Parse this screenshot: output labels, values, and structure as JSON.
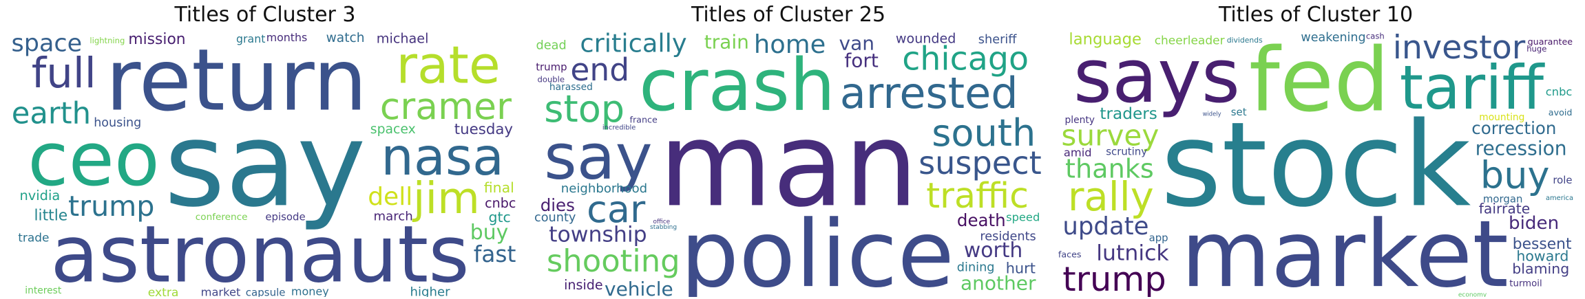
{
  "chart_data": [
    {
      "type": "wordcloud",
      "title": "Titles of Cluster 3",
      "words": [
        {
          "text": "say",
          "weight": 1.0,
          "color": "#2a788e"
        },
        {
          "text": "return",
          "weight": 0.72,
          "color": "#3b528b"
        },
        {
          "text": "astronauts",
          "weight": 0.66,
          "color": "#3e4a89"
        },
        {
          "text": "ceo",
          "weight": 0.62,
          "color": "#22a884"
        },
        {
          "text": "nasa",
          "weight": 0.55,
          "color": "#31688e"
        },
        {
          "text": "cramer",
          "weight": 0.5,
          "color": "#7ad151"
        },
        {
          "text": "jim",
          "weight": 0.46,
          "color": "#bddf26"
        },
        {
          "text": "rate",
          "weight": 0.42,
          "color": "#b5de2b"
        },
        {
          "text": "earth",
          "weight": 0.4,
          "color": "#21918c"
        },
        {
          "text": "trump",
          "weight": 0.38,
          "color": "#2c728e"
        },
        {
          "text": "watch",
          "weight": 0.36,
          "color": "#2f6c8e"
        },
        {
          "text": "full",
          "weight": 0.34,
          "color": "#414487"
        },
        {
          "text": "dell",
          "weight": 0.33,
          "color": "#d0e11c"
        },
        {
          "text": "space",
          "weight": 0.32,
          "color": "#35608d"
        },
        {
          "text": "fast",
          "weight": 0.3,
          "color": "#33638d"
        },
        {
          "text": "nvidia",
          "weight": 0.29,
          "color": "#1fa188"
        },
        {
          "text": "spacex",
          "weight": 0.28,
          "color": "#4ac16d"
        },
        {
          "text": "buy",
          "weight": 0.27,
          "color": "#5ec962"
        },
        {
          "text": "conference",
          "weight": 0.2,
          "color": "#7ad151"
        },
        {
          "text": "housing",
          "weight": 0.2,
          "color": "#3b528b"
        },
        {
          "text": "months",
          "weight": 0.18,
          "color": "#472c7a"
        },
        {
          "text": "tuesday",
          "weight": 0.19,
          "color": "#443983"
        },
        {
          "text": "grant",
          "weight": 0.18,
          "color": "#2a788e"
        },
        {
          "text": "michael",
          "weight": 0.17,
          "color": "#46337e"
        },
        {
          "text": "capsule",
          "weight": 0.17,
          "color": "#33638d"
        },
        {
          "text": "mission",
          "weight": 0.15,
          "color": "#481f70"
        },
        {
          "text": "march",
          "weight": 0.16,
          "color": "#482576"
        },
        {
          "text": "higher",
          "weight": 0.16,
          "color": "#287c8e"
        },
        {
          "text": "little",
          "weight": 0.15,
          "color": "#25858e"
        },
        {
          "text": "trade",
          "weight": 0.15,
          "color": "#2c728e"
        },
        {
          "text": "money",
          "weight": 0.14,
          "color": "#2d708e"
        },
        {
          "text": "final",
          "weight": 0.14,
          "color": "#b5de2b"
        },
        {
          "text": "lightning",
          "weight": 0.13,
          "color": "#84d44b"
        },
        {
          "text": "interest",
          "weight": 0.12,
          "color": "#6ccd5a"
        },
        {
          "text": "episode",
          "weight": 0.13,
          "color": "#443983"
        },
        {
          "text": "gtc",
          "weight": 0.14,
          "color": "#1f988b"
        },
        {
          "text": "cnbc",
          "weight": 0.13,
          "color": "#481769"
        },
        {
          "text": "market",
          "weight": 0.11,
          "color": "#404688"
        },
        {
          "text": "extra",
          "weight": 0.09,
          "color": "#a0da39"
        }
      ]
    },
    {
      "type": "wordcloud",
      "title": "Titles of Cluster 25",
      "words": [
        {
          "text": "man",
          "weight": 1.0,
          "color": "#472d7b"
        },
        {
          "text": "police",
          "weight": 0.78,
          "color": "#3e4c8a"
        },
        {
          "text": "crash",
          "weight": 0.6,
          "color": "#2eb37c"
        },
        {
          "text": "say",
          "weight": 0.52,
          "color": "#3b528b"
        },
        {
          "text": "arrested",
          "weight": 0.45,
          "color": "#31688e"
        },
        {
          "text": "chicago",
          "weight": 0.34,
          "color": "#20a386"
        },
        {
          "text": "suspect",
          "weight": 0.33,
          "color": "#39568c"
        },
        {
          "text": "shooting",
          "weight": 0.32,
          "color": "#65cb5e"
        },
        {
          "text": "south",
          "weight": 0.3,
          "color": "#2c728e"
        },
        {
          "text": "car",
          "weight": 0.3,
          "color": "#306a8e"
        },
        {
          "text": "stop",
          "weight": 0.3,
          "color": "#3dbc74"
        },
        {
          "text": "traffic",
          "weight": 0.28,
          "color": "#bddf26"
        },
        {
          "text": "home",
          "weight": 0.26,
          "color": "#2d708e"
        },
        {
          "text": "end",
          "weight": 0.25,
          "color": "#414487"
        },
        {
          "text": "critically",
          "weight": 0.2,
          "color": "#287d8e"
        },
        {
          "text": "township",
          "weight": 0.17,
          "color": "#433e85"
        },
        {
          "text": "worth",
          "weight": 0.16,
          "color": "#443983"
        },
        {
          "text": "neighborhood",
          "weight": 0.16,
          "color": "#2a778e"
        },
        {
          "text": "vehicle",
          "weight": 0.15,
          "color": "#306a8e"
        },
        {
          "text": "fort",
          "weight": 0.15,
          "color": "#46307e"
        },
        {
          "text": "another",
          "weight": 0.15,
          "color": "#5ec962"
        },
        {
          "text": "train",
          "weight": 0.15,
          "color": "#7ad151"
        },
        {
          "text": "van",
          "weight": 0.15,
          "color": "#3e4a89"
        },
        {
          "text": "wounded",
          "weight": 0.13,
          "color": "#443983"
        },
        {
          "text": "death",
          "weight": 0.13,
          "color": "#471063"
        },
        {
          "text": "dies",
          "weight": 0.13,
          "color": "#481f70"
        },
        {
          "text": "harassed",
          "weight": 0.12,
          "color": "#2e6e8e"
        },
        {
          "text": "dining",
          "weight": 0.12,
          "color": "#2a788e"
        },
        {
          "text": "county",
          "weight": 0.12,
          "color": "#31678e"
        },
        {
          "text": "sheriff",
          "weight": 0.12,
          "color": "#3b528b"
        },
        {
          "text": "dead",
          "weight": 0.12,
          "color": "#73d056"
        },
        {
          "text": "speed",
          "weight": 0.11,
          "color": "#22a884"
        },
        {
          "text": "france",
          "weight": 0.11,
          "color": "#433d84"
        },
        {
          "text": "residents",
          "weight": 0.12,
          "color": "#3f4788"
        },
        {
          "text": "incredible",
          "weight": 0.11,
          "color": "#404588"
        },
        {
          "text": "inside",
          "weight": 0.1,
          "color": "#482173"
        },
        {
          "text": "stabbing",
          "weight": 0.1,
          "color": "#2e6f8e"
        },
        {
          "text": "hurt",
          "weight": 0.11,
          "color": "#3b528b"
        },
        {
          "text": "double",
          "weight": 0.1,
          "color": "#453781"
        },
        {
          "text": "office",
          "weight": 0.1,
          "color": "#46327e"
        },
        {
          "text": "trump",
          "weight": 0.1,
          "color": "#481b6d"
        }
      ]
    },
    {
      "type": "wordcloud",
      "title": "Titles of Cluster 10",
      "words": [
        {
          "text": "stock",
          "weight": 1.0,
          "color": "#277f8e"
        },
        {
          "text": "market",
          "weight": 0.78,
          "color": "#3e4a89"
        },
        {
          "text": "fed",
          "weight": 0.74,
          "color": "#7ad151"
        },
        {
          "text": "says",
          "weight": 0.62,
          "color": "#481f70"
        },
        {
          "text": "tariff",
          "weight": 0.5,
          "color": "#1f988b"
        },
        {
          "text": "trump",
          "weight": 0.46,
          "color": "#440154"
        },
        {
          "text": "investor",
          "weight": 0.34,
          "color": "#39568c"
        },
        {
          "text": "recession",
          "weight": 0.33,
          "color": "#2e6e8e"
        },
        {
          "text": "rally",
          "weight": 0.32,
          "color": "#bddf26"
        },
        {
          "text": "survey",
          "weight": 0.3,
          "color": "#9bd93c"
        },
        {
          "text": "buy",
          "weight": 0.3,
          "color": "#2c728e"
        },
        {
          "text": "thanks",
          "weight": 0.27,
          "color": "#5ec962"
        },
        {
          "text": "update",
          "weight": 0.25,
          "color": "#3e4a89"
        },
        {
          "text": "correction",
          "weight": 0.22,
          "color": "#306a8e"
        },
        {
          "text": "weakening",
          "weight": 0.2,
          "color": "#2e6e8e"
        },
        {
          "text": "fairrate",
          "weight": 0.18,
          "color": "#443a83"
        },
        {
          "text": "lutnick",
          "weight": 0.17,
          "color": "#453781"
        },
        {
          "text": "traders",
          "weight": 0.16,
          "color": "#1f968b"
        },
        {
          "text": "cheerleader",
          "weight": 0.15,
          "color": "#86d549"
        },
        {
          "text": "bessent",
          "weight": 0.15,
          "color": "#3b528b"
        },
        {
          "text": "turmoil",
          "weight": 0.15,
          "color": "#46327e"
        },
        {
          "text": "howard",
          "weight": 0.14,
          "color": "#2a788e"
        },
        {
          "text": "biden",
          "weight": 0.14,
          "color": "#472a7a"
        },
        {
          "text": "blaming",
          "weight": 0.14,
          "color": "#433e85"
        },
        {
          "text": "scrutiny",
          "weight": 0.13,
          "color": "#3f4889"
        },
        {
          "text": "morgan",
          "weight": 0.13,
          "color": "#31688e"
        },
        {
          "text": "dividends",
          "weight": 0.12,
          "color": "#2a788e"
        },
        {
          "text": "language",
          "weight": 0.12,
          "color": "#a8db34"
        },
        {
          "text": "mounting",
          "weight": 0.12,
          "color": "#d8e219"
        },
        {
          "text": "widely",
          "weight": 0.12,
          "color": "#3b528b"
        },
        {
          "text": "plenty",
          "weight": 0.12,
          "color": "#453581"
        },
        {
          "text": "guarantee",
          "weight": 0.11,
          "color": "#481769"
        },
        {
          "text": "faces",
          "weight": 0.11,
          "color": "#414487"
        },
        {
          "text": "america",
          "weight": 0.11,
          "color": "#2a768e"
        },
        {
          "text": "amid",
          "weight": 0.11,
          "color": "#482878"
        },
        {
          "text": "avoid",
          "weight": 0.11,
          "color": "#2f6c8e"
        },
        {
          "text": "cnbc",
          "weight": 0.11,
          "color": "#1f9a8a"
        },
        {
          "text": "app",
          "weight": 0.1,
          "color": "#32648e"
        },
        {
          "text": "huge",
          "weight": 0.1,
          "color": "#482374"
        },
        {
          "text": "cash",
          "weight": 0.1,
          "color": "#472e7c"
        },
        {
          "text": "economy",
          "weight": 0.1,
          "color": "#5ec962"
        },
        {
          "text": "role",
          "weight": 0.1,
          "color": "#414487"
        },
        {
          "text": "set",
          "weight": 0.1,
          "color": "#2a778e"
        }
      ]
    }
  ]
}
